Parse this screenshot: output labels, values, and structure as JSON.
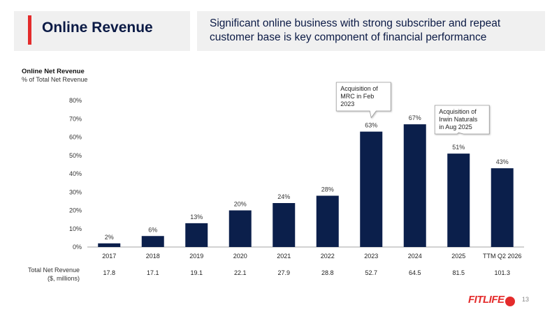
{
  "header": {
    "title": "Online Revenue",
    "subtitle": "Significant online business with strong subscriber and repeat customer base is key component of financial performance"
  },
  "chart_data": {
    "type": "bar",
    "title": "Online Net Revenue",
    "subtitle": "% of Total Net Revenue",
    "categories": [
      "2017",
      "2018",
      "2019",
      "2020",
      "2021",
      "2022",
      "2023",
      "2024",
      "2025",
      "TTM Q2 2026"
    ],
    "values": [
      2,
      6,
      13,
      20,
      24,
      28,
      63,
      67,
      51,
      43
    ],
    "data_labels": [
      "2%",
      "6%",
      "13%",
      "20%",
      "24%",
      "28%",
      "63%",
      "67%",
      "51%",
      "43%"
    ],
    "y_ticks": [
      "0%",
      "10%",
      "20%",
      "30%",
      "40%",
      "50%",
      "60%",
      "70%",
      "80%"
    ],
    "ylim": [
      0,
      80
    ],
    "grid": false,
    "bar_color": "#0b1f4b",
    "annotations": [
      {
        "category": "2023",
        "text": [
          "Acquisition of",
          "MRC in Feb",
          "2023"
        ]
      },
      {
        "category": "2025",
        "text": [
          "Acquisition of",
          "Irwin Naturals",
          "in Aug 2025"
        ]
      }
    ]
  },
  "footer_row": {
    "label": [
      "Total Net Revenue",
      "($, millions)"
    ],
    "values": [
      "17.8",
      "17.1",
      "19.1",
      "22.1",
      "27.9",
      "28.8",
      "52.7",
      "64.5",
      "81.5",
      "101.3"
    ]
  },
  "logo_text": "FITLIFE",
  "page_number": "13",
  "colors": {
    "accent": "#e42b2b",
    "navy": "#0b1a45",
    "panel": "#f0f0f0"
  }
}
